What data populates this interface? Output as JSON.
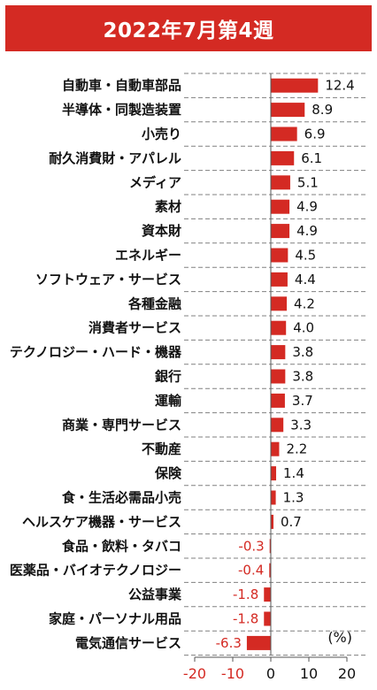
{
  "title": "2022年7月第4週",
  "colors": {
    "banner": "#d42a23",
    "bar": "#d42a23",
    "negative_text": "#d42a23",
    "gridline": "#808080"
  },
  "chart_data": {
    "type": "bar",
    "orientation": "horizontal",
    "categories": [
      "自動車・自動車部品",
      "半導体・同製造装置",
      "小売り",
      "耐久消費財・アパレル",
      "メディア",
      "素材",
      "資本財",
      "エネルギー",
      "ソフトウェア・サービス",
      "各種金融",
      "消費者サービス",
      "テクノロジー・ハード・機器",
      "銀行",
      "運輸",
      "商業・専門サービス",
      "不動産",
      "保険",
      "食・生活必需品小売",
      "ヘルスケア機器・サービス",
      "食品・飲料・タバコ",
      "医薬品・バイオテクノロジー",
      "公益事業",
      "家庭・パーソナル用品",
      "電気通信サービス"
    ],
    "values": [
      12.4,
      8.9,
      6.9,
      6.1,
      5.1,
      4.9,
      4.9,
      4.5,
      4.4,
      4.2,
      4.0,
      3.8,
      3.8,
      3.7,
      3.3,
      2.2,
      1.4,
      1.3,
      0.7,
      -0.3,
      -0.4,
      -1.8,
      -1.8,
      -6.3
    ],
    "value_labels": [
      "12.4",
      "8.9",
      "6.9",
      "6.1",
      "5.1",
      "4.9",
      "4.9",
      "4.5",
      "4.4",
      "4.2",
      "4.0",
      "3.8",
      "3.8",
      "3.7",
      "3.3",
      "2.2",
      "1.4",
      "1.3",
      "0.7",
      "-0.3",
      "-0.4",
      "-1.8",
      "-1.8",
      "-6.3"
    ],
    "xlim": [
      -20,
      20
    ],
    "xticks": [
      -20,
      -10,
      0,
      10,
      20
    ],
    "xtick_labels": [
      "-20",
      "-10",
      "0",
      "10",
      "20"
    ],
    "unit": "(%)",
    "grid": "horizontal dashed"
  }
}
